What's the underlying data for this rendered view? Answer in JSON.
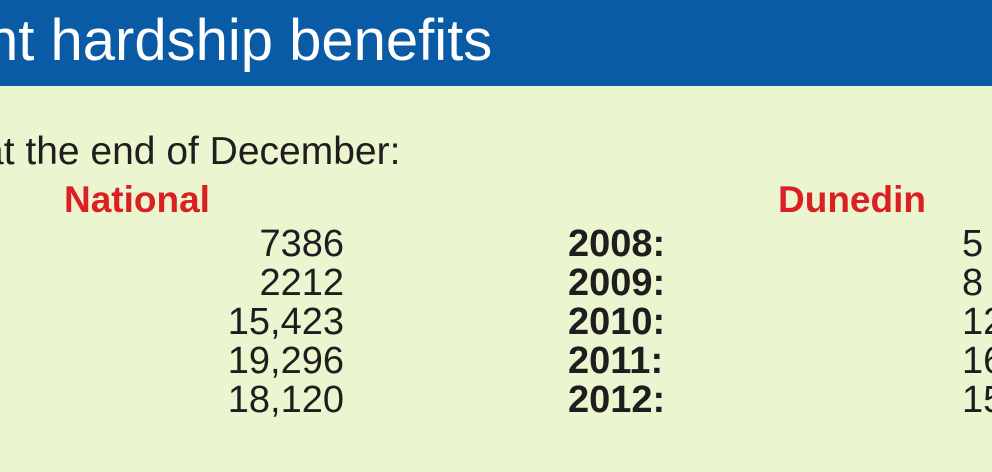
{
  "banner": {
    "title": "nt hardship benefits"
  },
  "subtitle": "at the end of December:",
  "chart_data": {
    "type": "table",
    "columns": [
      "National",
      "",
      "Dunedin"
    ],
    "rows": [
      {
        "national": "7386",
        "year": "2008:",
        "dunedin": "5"
      },
      {
        "national": "2212",
        "year": "2009:",
        "dunedin": "8"
      },
      {
        "national": "15,423",
        "year": "2010:",
        "dunedin": "12"
      },
      {
        "national": "19,296",
        "year": "2011:",
        "dunedin": "16"
      },
      {
        "national": "18,120",
        "year": "2012:",
        "dunedin": "15"
      }
    ]
  },
  "colors": {
    "banner": "#0a5ba5",
    "panel": "#ebf5cf",
    "heading": "#dc1f23",
    "text": "#1e1e1e"
  }
}
